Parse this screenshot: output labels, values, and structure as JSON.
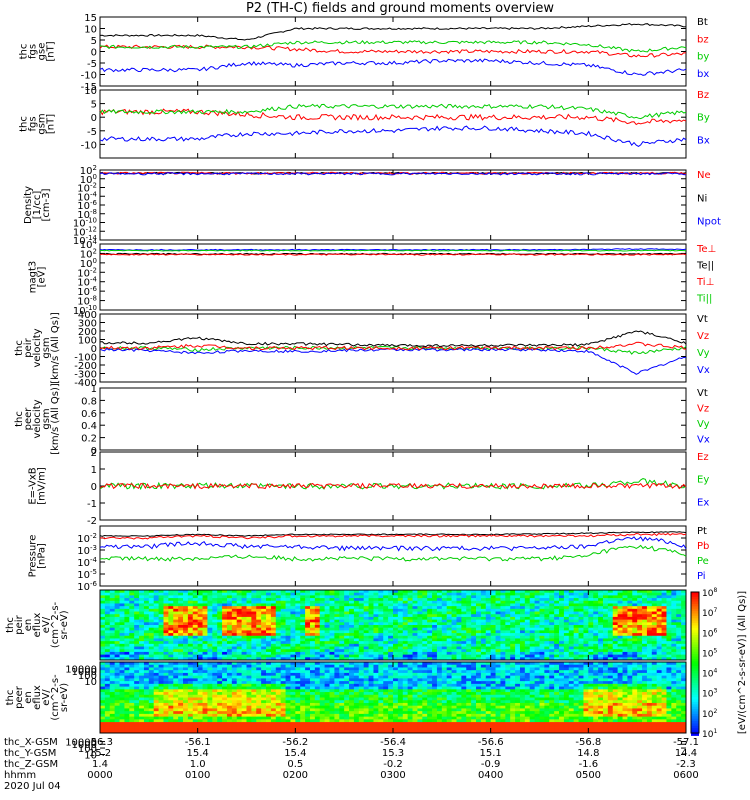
{
  "title": "P2 (TH-C) fields and ground moments overview",
  "panels": [
    {
      "id": "fgs-gse",
      "ylabel": [
        "thc",
        "fgs",
        "gse",
        "[nT]"
      ],
      "scale": "linear",
      "ylim": [
        -15,
        15
      ],
      "ticks": [
        -15,
        -10,
        -5,
        0,
        5,
        10,
        15
      ],
      "legend": [
        {
          "label": "Bt",
          "color": "#000000"
        },
        {
          "label": "bz",
          "color": "#ff0000"
        },
        {
          "label": "by",
          "color": "#00cc00"
        },
        {
          "label": "bx",
          "color": "#0000ff"
        }
      ]
    },
    {
      "id": "fgs-gsm",
      "ylabel": [
        "thc",
        "fgs",
        "gsm",
        "[nT]"
      ],
      "scale": "linear",
      "ylim": [
        -15,
        10
      ],
      "ticks": [
        -10,
        -5,
        0,
        5,
        10
      ],
      "legend": [
        {
          "label": "Bz",
          "color": "#ff0000"
        },
        {
          "label": "By",
          "color": "#00cc00"
        },
        {
          "label": "Bx",
          "color": "#0000ff"
        }
      ]
    },
    {
      "id": "density",
      "ylabel": [
        "Density",
        "[1/cc]",
        "[cm-3]"
      ],
      "scale": "log",
      "ylim": [
        -14,
        2
      ],
      "ticks": [
        2,
        0,
        -2,
        -4,
        -6,
        -8,
        -10,
        -12,
        -14
      ],
      "legend": [
        {
          "label": "Ne",
          "color": "#ff0000"
        },
        {
          "label": "Ni",
          "color": "#000000"
        },
        {
          "label": "Npot",
          "color": "#0000ff"
        }
      ]
    },
    {
      "id": "temperature",
      "ylabel": [
        "magt3",
        "[eV]"
      ],
      "scale": "log",
      "ylim": [
        -10,
        4
      ],
      "ticks": [
        4,
        2,
        0,
        -2,
        -4,
        -6,
        -8,
        -10
      ],
      "legend": [
        {
          "label": "Te⊥",
          "color": "#ff0000"
        },
        {
          "label": "Te||",
          "color": "#000000"
        },
        {
          "label": "Ti⊥",
          "color": "#ff0000"
        },
        {
          "label": "Ti||",
          "color": "#00cc00"
        }
      ]
    },
    {
      "id": "peir-velocity",
      "ylabel": [
        "thc",
        "peir",
        "velocity",
        "gsm",
        "[km/s (All Qs)]"
      ],
      "scale": "linear",
      "ylim": [
        -400,
        400
      ],
      "ticks": [
        -400,
        -300,
        -200,
        -100,
        0,
        100,
        200,
        300,
        400
      ],
      "legend": [
        {
          "label": "Vt",
          "color": "#000000"
        },
        {
          "label": "Vz",
          "color": "#ff0000"
        },
        {
          "label": "Vy",
          "color": "#00cc00"
        },
        {
          "label": "Vx",
          "color": "#0000ff"
        }
      ]
    },
    {
      "id": "peer-velocity",
      "ylabel": [
        "thc",
        "peer",
        "velocity",
        "gsm",
        "[km/s (All Qs)]"
      ],
      "scale": "linear",
      "ylim": [
        0,
        1
      ],
      "ticks": [
        0.0,
        0.2,
        0.4,
        0.6,
        0.8,
        1.0
      ],
      "legend": [
        {
          "label": "Vt",
          "color": "#000000"
        },
        {
          "label": "Vz",
          "color": "#ff0000"
        },
        {
          "label": "Vy",
          "color": "#00cc00"
        },
        {
          "label": "Vx",
          "color": "#0000ff"
        }
      ]
    },
    {
      "id": "efield",
      "ylabel": [
        "E=-VxB",
        "[mV/m]"
      ],
      "scale": "linear",
      "ylim": [
        -2,
        2
      ],
      "ticks": [
        -2,
        -1,
        0,
        1,
        2
      ],
      "legend": [
        {
          "label": "Ez",
          "color": "#ff0000"
        },
        {
          "label": "Ey",
          "color": "#00cc00"
        },
        {
          "label": "Ex",
          "color": "#0000ff"
        }
      ]
    },
    {
      "id": "pressure",
      "ylabel": [
        "Pressure",
        "[nPa]"
      ],
      "scale": "log",
      "ylim": [
        -6,
        -1
      ],
      "ticks": [
        -2,
        -3,
        -4,
        -5,
        -6
      ],
      "legend": [
        {
          "label": "Pt",
          "color": "#000000"
        },
        {
          "label": "Pb",
          "color": "#ff0000"
        },
        {
          "label": "Pe",
          "color": "#00cc00"
        },
        {
          "label": "Pi",
          "color": "#0000ff"
        }
      ]
    },
    {
      "id": "peir-spectrogram",
      "ylabel": [
        "thc",
        "peir",
        "en",
        "eflux",
        "eV/",
        "(cm^2-s-",
        "sr-eV)"
      ],
      "scale": "log",
      "ylim": [
        1,
        4.3
      ],
      "ticks": [
        10000,
        1000,
        100,
        10
      ],
      "legend": []
    },
    {
      "id": "peer-spectrogram",
      "ylabel": [
        "thc",
        "peer",
        "en",
        "eflux",
        "eV/",
        "(cm^2-s-",
        "sr-eV)"
      ],
      "scale": "log",
      "ylim": [
        1,
        4.3
      ],
      "ticks": [
        10000,
        1000,
        100,
        10
      ],
      "legend": []
    }
  ],
  "colorbar": {
    "ticks": [
      8,
      7,
      6,
      5,
      4,
      3,
      2,
      1
    ],
    "label": "[eV/(cm^2-s-sr-eV)] (All Qs)]"
  },
  "xaxis": {
    "row_labels": [
      "thc_X-GSM",
      "thc_Y-GSM",
      "thc_Z-GSM",
      "hhmm",
      "2020 Jul 04"
    ],
    "ticks": [
      {
        "x": "-56.3",
        "y": "15.2",
        "z": "1.4",
        "time": "0000"
      },
      {
        "x": "-56.1",
        "y": "15.4",
        "z": "1.0",
        "time": "0100"
      },
      {
        "x": "-56.2",
        "y": "15.4",
        "z": "0.5",
        "time": "0200"
      },
      {
        "x": "-56.4",
        "y": "15.3",
        "z": "-0.2",
        "time": "0300"
      },
      {
        "x": "-56.6",
        "y": "15.1",
        "z": "-0.9",
        "time": "0400"
      },
      {
        "x": "-56.8",
        "y": "14.8",
        "z": "-1.6",
        "time": "0500"
      },
      {
        "x": "-57.1",
        "y": "14.4",
        "z": "-2.3",
        "time": "0600"
      }
    ]
  },
  "chart_data": {
    "type": "line",
    "title": "P2 (TH-C) fields and ground moments overview",
    "x": [
      0,
      0.5,
      1,
      1.5,
      2,
      2.5,
      3,
      3.5,
      4,
      4.5,
      5,
      5.5,
      6
    ],
    "xlabel": "hhmm",
    "xticks": [
      "0000",
      "0100",
      "0200",
      "0300",
      "0400",
      "0500",
      "0600"
    ],
    "xlim": [
      0,
      6
    ],
    "series": [
      {
        "name": "Bt",
        "panel": "fgs-gse",
        "values": [
          7,
          7,
          7,
          5,
          10,
          10,
          10,
          10,
          10,
          10,
          11,
          12,
          11
        ]
      },
      {
        "name": "bz",
        "panel": "fgs-gse",
        "values": [
          2,
          2,
          2,
          2,
          1,
          0,
          0,
          0,
          0,
          0,
          0,
          -2,
          -1
        ]
      },
      {
        "name": "by",
        "panel": "fgs-gse",
        "values": [
          2,
          2,
          2,
          2,
          4,
          4,
          4,
          4,
          4,
          4,
          3,
          0,
          2
        ]
      },
      {
        "name": "bx",
        "panel": "fgs-gse",
        "values": [
          -8,
          -8,
          -8,
          -5,
          -6,
          -5,
          -5,
          -4,
          -4,
          -5,
          -6,
          -10,
          -8
        ]
      },
      {
        "name": "Vt",
        "panel": "peir-velocity",
        "values": [
          60,
          60,
          120,
          50,
          50,
          40,
          30,
          30,
          30,
          30,
          40,
          200,
          60
        ]
      },
      {
        "name": "Vx",
        "panel": "peir-velocity",
        "values": [
          -20,
          -30,
          -60,
          -30,
          -40,
          -30,
          -20,
          -20,
          -20,
          -20,
          -40,
          -300,
          -100
        ]
      },
      {
        "name": "Pt",
        "panel": "pressure",
        "values": [
          0.015,
          0.015,
          0.02,
          0.015,
          0.02,
          0.02,
          0.02,
          0.02,
          0.02,
          0.022,
          0.025,
          0.03,
          0.03
        ]
      },
      {
        "name": "Pe",
        "panel": "pressure",
        "values": [
          0.0002,
          0.0002,
          0.0002,
          0.0003,
          0.0002,
          0.0002,
          0.0002,
          0.0002,
          0.0002,
          0.0002,
          0.0003,
          0.002,
          0.0003
        ]
      }
    ]
  }
}
